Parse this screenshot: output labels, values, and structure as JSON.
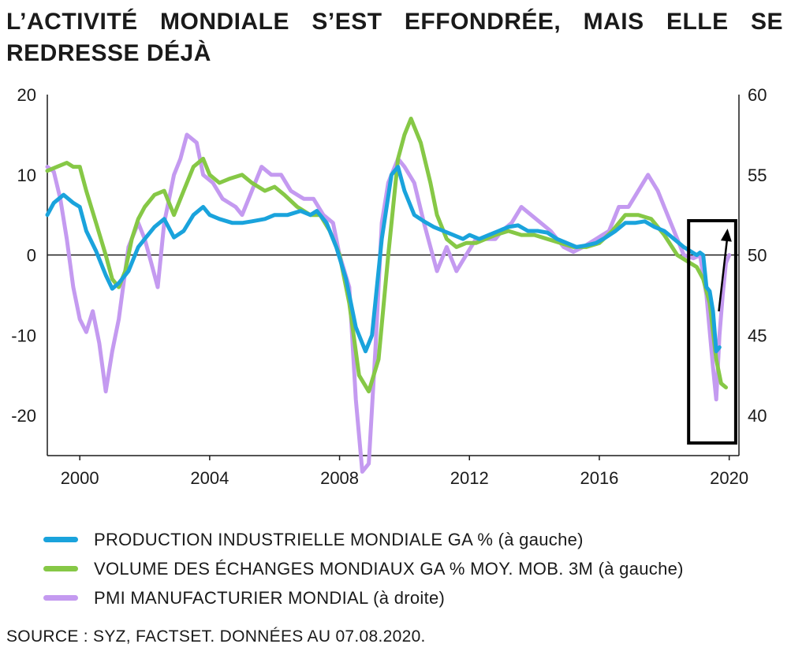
{
  "title": "L’ACTIVITÉ MONDIALE S’EST EFFONDRÉE, MAIS ELLE SE REDRESSE DÉJÀ",
  "source": "SOURCE  : SYZ, FACTSET. DONNÉES AU 07.08.2020.",
  "colors": {
    "production": "#1aa3dc",
    "trade": "#86c846",
    "pmi": "#c49af0",
    "axis": "#1a1a1a",
    "highlight": "#000000"
  },
  "chart_data": {
    "type": "line",
    "x_ticks": [
      "2000",
      "2004",
      "2008",
      "2012",
      "2016",
      "2020"
    ],
    "xlim": [
      1999,
      2020.3
    ],
    "y_left": {
      "ticks": [
        "20",
        "10",
        "0",
        "-10",
        "-20"
      ],
      "ylim": [
        -25,
        20
      ]
    },
    "y_right": {
      "ticks": [
        "60",
        "55",
        "50",
        "45",
        "40"
      ],
      "ylim": [
        37.5,
        60
      ]
    },
    "legend": "bottom",
    "grid": false,
    "series": [
      {
        "name": "PRODUCTION INDUSTRIELLE MONDIALE GA % (à gauche)",
        "axis": "left",
        "points": [
          [
            1999.0,
            5
          ],
          [
            1999.2,
            6.5
          ],
          [
            1999.5,
            7.5
          ],
          [
            1999.8,
            6.5
          ],
          [
            2000.0,
            6
          ],
          [
            2000.2,
            3
          ],
          [
            2000.5,
            0.5
          ],
          [
            2000.8,
            -2.5
          ],
          [
            2001.0,
            -4.2
          ],
          [
            2001.2,
            -3.5
          ],
          [
            2001.5,
            -2
          ],
          [
            2001.8,
            1
          ],
          [
            2002.0,
            2
          ],
          [
            2002.3,
            3.5
          ],
          [
            2002.6,
            4.5
          ],
          [
            2002.9,
            2.2
          ],
          [
            2003.2,
            3
          ],
          [
            2003.5,
            5
          ],
          [
            2003.8,
            6
          ],
          [
            2004.0,
            5
          ],
          [
            2004.3,
            4.5
          ],
          [
            2004.7,
            4
          ],
          [
            2005.0,
            4
          ],
          [
            2005.3,
            4.2
          ],
          [
            2005.7,
            4.5
          ],
          [
            2006.0,
            5
          ],
          [
            2006.4,
            5
          ],
          [
            2006.8,
            5.5
          ],
          [
            2007.1,
            5
          ],
          [
            2007.3,
            5.5
          ],
          [
            2007.6,
            4
          ],
          [
            2007.9,
            1
          ],
          [
            2008.2,
            -3
          ],
          [
            2008.5,
            -9
          ],
          [
            2008.8,
            -12
          ],
          [
            2009.0,
            -10
          ],
          [
            2009.3,
            2
          ],
          [
            2009.6,
            10
          ],
          [
            2009.8,
            11
          ],
          [
            2010.0,
            8
          ],
          [
            2010.3,
            5
          ],
          [
            2010.6,
            4.2
          ],
          [
            2010.9,
            3.5
          ],
          [
            2011.2,
            3
          ],
          [
            2011.5,
            2.5
          ],
          [
            2011.8,
            2
          ],
          [
            2012.0,
            2.5
          ],
          [
            2012.3,
            2
          ],
          [
            2012.6,
            2.5
          ],
          [
            2012.9,
            3
          ],
          [
            2013.2,
            3.5
          ],
          [
            2013.5,
            3.7
          ],
          [
            2013.8,
            3
          ],
          [
            2014.1,
            3
          ],
          [
            2014.4,
            2.8
          ],
          [
            2014.7,
            2
          ],
          [
            2015.0,
            1.5
          ],
          [
            2015.3,
            1
          ],
          [
            2015.6,
            1.2
          ],
          [
            2015.9,
            1.5
          ],
          [
            2016.2,
            2.2
          ],
          [
            2016.5,
            3
          ],
          [
            2016.8,
            4
          ],
          [
            2017.1,
            4
          ],
          [
            2017.4,
            4.2
          ],
          [
            2017.7,
            3.5
          ],
          [
            2018.0,
            3
          ],
          [
            2018.3,
            2
          ],
          [
            2018.6,
            1
          ],
          [
            2018.8,
            0.5
          ],
          [
            2019.0,
            0
          ],
          [
            2019.1,
            0.3
          ],
          [
            2019.2,
            0
          ],
          [
            2019.3,
            -4
          ],
          [
            2019.4,
            -4.5
          ],
          [
            2019.5,
            -7
          ],
          [
            2019.6,
            -12
          ],
          [
            2019.7,
            -11.5
          ]
        ]
      },
      {
        "name": "VOLUME DES ÉCHANGES MONDIAUX GA % MOY. MOB. 3M (à gauche)",
        "axis": "left",
        "points": [
          [
            1999.0,
            10.5
          ],
          [
            1999.3,
            11
          ],
          [
            1999.6,
            11.5
          ],
          [
            1999.8,
            11
          ],
          [
            2000.0,
            11
          ],
          [
            2000.2,
            8
          ],
          [
            2000.5,
            4
          ],
          [
            2000.8,
            0
          ],
          [
            2001.0,
            -3
          ],
          [
            2001.2,
            -4
          ],
          [
            2001.4,
            -2
          ],
          [
            2001.6,
            2
          ],
          [
            2001.8,
            4.5
          ],
          [
            2002.0,
            6
          ],
          [
            2002.3,
            7.5
          ],
          [
            2002.6,
            8
          ],
          [
            2002.9,
            5
          ],
          [
            2003.2,
            8
          ],
          [
            2003.5,
            11
          ],
          [
            2003.8,
            12
          ],
          [
            2004.0,
            10
          ],
          [
            2004.3,
            9
          ],
          [
            2004.6,
            9.5
          ],
          [
            2005.0,
            10
          ],
          [
            2005.3,
            9
          ],
          [
            2005.7,
            8
          ],
          [
            2006.0,
            8.5
          ],
          [
            2006.3,
            7.5
          ],
          [
            2006.7,
            6
          ],
          [
            2007.1,
            5
          ],
          [
            2007.4,
            5
          ],
          [
            2007.7,
            3
          ],
          [
            2008.0,
            0
          ],
          [
            2008.3,
            -6
          ],
          [
            2008.6,
            -15
          ],
          [
            2008.9,
            -17
          ],
          [
            2009.2,
            -13
          ],
          [
            2009.5,
            0
          ],
          [
            2009.8,
            12
          ],
          [
            2010.0,
            15
          ],
          [
            2010.2,
            17
          ],
          [
            2010.5,
            14
          ],
          [
            2010.8,
            9
          ],
          [
            2011.0,
            5
          ],
          [
            2011.3,
            2
          ],
          [
            2011.6,
            1
          ],
          [
            2011.9,
            1.5
          ],
          [
            2012.2,
            1.5
          ],
          [
            2012.5,
            2
          ],
          [
            2012.8,
            2.5
          ],
          [
            2013.2,
            3
          ],
          [
            2013.6,
            2.5
          ],
          [
            2014.0,
            2.5
          ],
          [
            2014.4,
            2
          ],
          [
            2014.8,
            1.5
          ],
          [
            2015.2,
            1
          ],
          [
            2015.6,
            1
          ],
          [
            2016.0,
            1.5
          ],
          [
            2016.4,
            3
          ],
          [
            2016.8,
            5
          ],
          [
            2017.2,
            5
          ],
          [
            2017.6,
            4.5
          ],
          [
            2018.0,
            2.5
          ],
          [
            2018.4,
            0
          ],
          [
            2018.8,
            -1
          ],
          [
            2019.0,
            -1.5
          ],
          [
            2019.2,
            -3
          ],
          [
            2019.4,
            -6
          ],
          [
            2019.6,
            -13
          ],
          [
            2019.75,
            -16
          ],
          [
            2019.9,
            -16.5
          ]
        ]
      },
      {
        "name": "PMI MANUFACTURIER MONDIAL (à droite)",
        "axis": "right",
        "points": [
          [
            1999.0,
            55.5
          ],
          [
            1999.2,
            55.2
          ],
          [
            1999.4,
            53.5
          ],
          [
            1999.6,
            51
          ],
          [
            1999.8,
            48
          ],
          [
            2000.0,
            46
          ],
          [
            2000.2,
            45.2
          ],
          [
            2000.4,
            46.5
          ],
          [
            2000.6,
            44.5
          ],
          [
            2000.8,
            41.5
          ],
          [
            2001.0,
            44
          ],
          [
            2001.2,
            46
          ],
          [
            2001.5,
            50.5
          ],
          [
            2001.8,
            52
          ],
          [
            2002.0,
            51
          ],
          [
            2002.2,
            49.5
          ],
          [
            2002.4,
            48
          ],
          [
            2002.6,
            52
          ],
          [
            2002.9,
            55
          ],
          [
            2003.1,
            56
          ],
          [
            2003.3,
            57.5
          ],
          [
            2003.6,
            57
          ],
          [
            2003.8,
            55
          ],
          [
            2004.1,
            54.5
          ],
          [
            2004.4,
            53.5
          ],
          [
            2004.8,
            53
          ],
          [
            2005.0,
            52.5
          ],
          [
            2005.3,
            54
          ],
          [
            2005.6,
            55.5
          ],
          [
            2005.9,
            55
          ],
          [
            2006.2,
            55
          ],
          [
            2006.5,
            54
          ],
          [
            2006.9,
            53.5
          ],
          [
            2007.2,
            53.5
          ],
          [
            2007.5,
            52.5
          ],
          [
            2007.8,
            52
          ],
          [
            2008.0,
            50
          ],
          [
            2008.3,
            48
          ],
          [
            2008.5,
            41
          ],
          [
            2008.7,
            36.5
          ],
          [
            2008.9,
            37
          ],
          [
            2009.1,
            44
          ],
          [
            2009.3,
            52
          ],
          [
            2009.5,
            54.5
          ],
          [
            2009.8,
            56
          ],
          [
            2010.0,
            55.5
          ],
          [
            2010.3,
            54.5
          ],
          [
            2010.6,
            52
          ],
          [
            2010.8,
            50.5
          ],
          [
            2011.0,
            49
          ],
          [
            2011.3,
            50.5
          ],
          [
            2011.6,
            49
          ],
          [
            2011.9,
            50
          ],
          [
            2012.2,
            51
          ],
          [
            2012.5,
            51
          ],
          [
            2012.8,
            51
          ],
          [
            2013.0,
            51.5
          ],
          [
            2013.3,
            52
          ],
          [
            2013.6,
            53
          ],
          [
            2013.9,
            52.5
          ],
          [
            2014.2,
            52
          ],
          [
            2014.5,
            51.5
          ],
          [
            2014.9,
            50.5
          ],
          [
            2015.2,
            50.2
          ],
          [
            2015.5,
            50.5
          ],
          [
            2015.9,
            51
          ],
          [
            2016.3,
            51.5
          ],
          [
            2016.6,
            53
          ],
          [
            2016.9,
            53
          ],
          [
            2017.2,
            54
          ],
          [
            2017.5,
            55
          ],
          [
            2017.8,
            54
          ],
          [
            2018.0,
            53
          ],
          [
            2018.3,
            51.5
          ],
          [
            2018.6,
            50
          ],
          [
            2018.9,
            49.8
          ],
          [
            2019.1,
            50
          ],
          [
            2019.3,
            47.5
          ],
          [
            2019.5,
            43
          ],
          [
            2019.6,
            41
          ],
          [
            2019.7,
            45
          ],
          [
            2019.8,
            47.5
          ],
          [
            2019.9,
            49.5
          ],
          [
            2020.0,
            50
          ]
        ]
      }
    ]
  }
}
